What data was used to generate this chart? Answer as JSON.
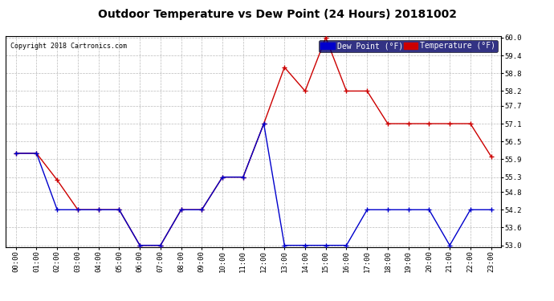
{
  "title": "Outdoor Temperature vs Dew Point (24 Hours) 20181002",
  "copyright_text": "Copyright 2018 Cartronics.com",
  "x_labels": [
    "00:00",
    "01:00",
    "02:00",
    "03:00",
    "04:00",
    "05:00",
    "06:00",
    "07:00",
    "08:00",
    "09:00",
    "10:00",
    "11:00",
    "12:00",
    "13:00",
    "14:00",
    "15:00",
    "16:00",
    "17:00",
    "18:00",
    "19:00",
    "20:00",
    "21:00",
    "22:00",
    "23:00"
  ],
  "temperature": [
    56.1,
    56.1,
    55.2,
    54.2,
    54.2,
    54.2,
    53.0,
    53.0,
    54.2,
    54.2,
    55.3,
    55.3,
    57.1,
    59.0,
    58.2,
    60.0,
    58.2,
    58.2,
    57.1,
    57.1,
    57.1,
    57.1,
    57.1,
    56.0
  ],
  "dew_point": [
    56.1,
    56.1,
    54.2,
    54.2,
    54.2,
    54.2,
    53.0,
    53.0,
    54.2,
    54.2,
    55.3,
    55.3,
    57.1,
    53.0,
    53.0,
    53.0,
    53.0,
    54.2,
    54.2,
    54.2,
    54.2,
    53.0,
    54.2,
    54.2
  ],
  "temp_color": "#cc0000",
  "dew_color": "#0000cc",
  "bg_color": "#ffffff",
  "grid_color": "#bbbbbb",
  "ylim_min": 53.0,
  "ylim_max": 60.0,
  "yticks": [
    53.0,
    53.6,
    54.2,
    54.8,
    55.3,
    55.9,
    56.5,
    57.1,
    57.7,
    58.2,
    58.8,
    59.4,
    60.0
  ],
  "legend_dew_bg": "#0000cc",
  "legend_temp_bg": "#cc0000",
  "legend_dew_label": "Dew Point (°F)",
  "legend_temp_label": "Temperature (°F)"
}
